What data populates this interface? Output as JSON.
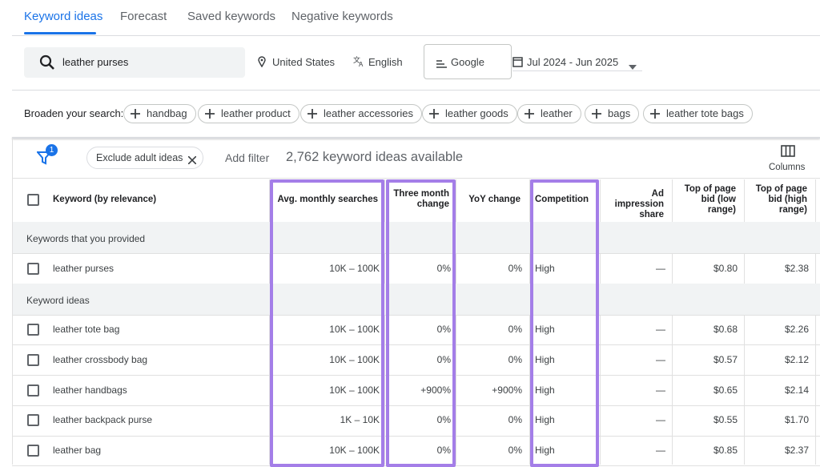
{
  "tabs": [
    "Keyword ideas",
    "Forecast",
    "Saved keywords",
    "Negative keywords"
  ],
  "search": {
    "query": "leather purses",
    "location": "United States",
    "language": "English",
    "network": "Google",
    "date_range": "Jul 2024 - Jun 2025"
  },
  "broaden": {
    "label": "Broaden your search:",
    "chips": [
      "handbag",
      "leather product",
      "leather accessories",
      "leather goods",
      "leather",
      "bags",
      "leather tote bags"
    ]
  },
  "toolbar": {
    "filter_count": "1",
    "exclude": "Exclude adult ideas",
    "add_filter": "Add filter",
    "count": "2,762 keyword ideas available",
    "columns": "Columns"
  },
  "table": {
    "headers": [
      "Keyword (by relevance)",
      "Avg. monthly searches",
      "Three month change",
      "YoY change",
      "Competition",
      "Ad impression share",
      "Top of page bid (low range)",
      "Top of page bid (high range)"
    ],
    "groups": [
      {
        "label": "Keywords that you provided",
        "rows": [
          [
            "leather purses",
            "10K – 100K",
            "0%",
            "0%",
            "High",
            "—",
            "$0.80",
            "$2.38"
          ]
        ]
      },
      {
        "label": "Keyword ideas",
        "rows": [
          [
            "leather tote bag",
            "10K – 100K",
            "0%",
            "0%",
            "High",
            "—",
            "$0.68",
            "$2.26"
          ],
          [
            "leather crossbody bag",
            "10K – 100K",
            "0%",
            "0%",
            "High",
            "—",
            "$0.57",
            "$2.12"
          ],
          [
            "leather handbags",
            "10K – 100K",
            "+900%",
            "+900%",
            "High",
            "—",
            "$0.65",
            "$2.14"
          ],
          [
            "leather backpack purse",
            "1K – 10K",
            "0%",
            "0%",
            "High",
            "—",
            "$0.55",
            "$1.70"
          ],
          [
            "leather bag",
            "10K – 100K",
            "0%",
            "0%",
            "High",
            "—",
            "$0.85",
            "$2.37"
          ]
        ]
      }
    ]
  }
}
